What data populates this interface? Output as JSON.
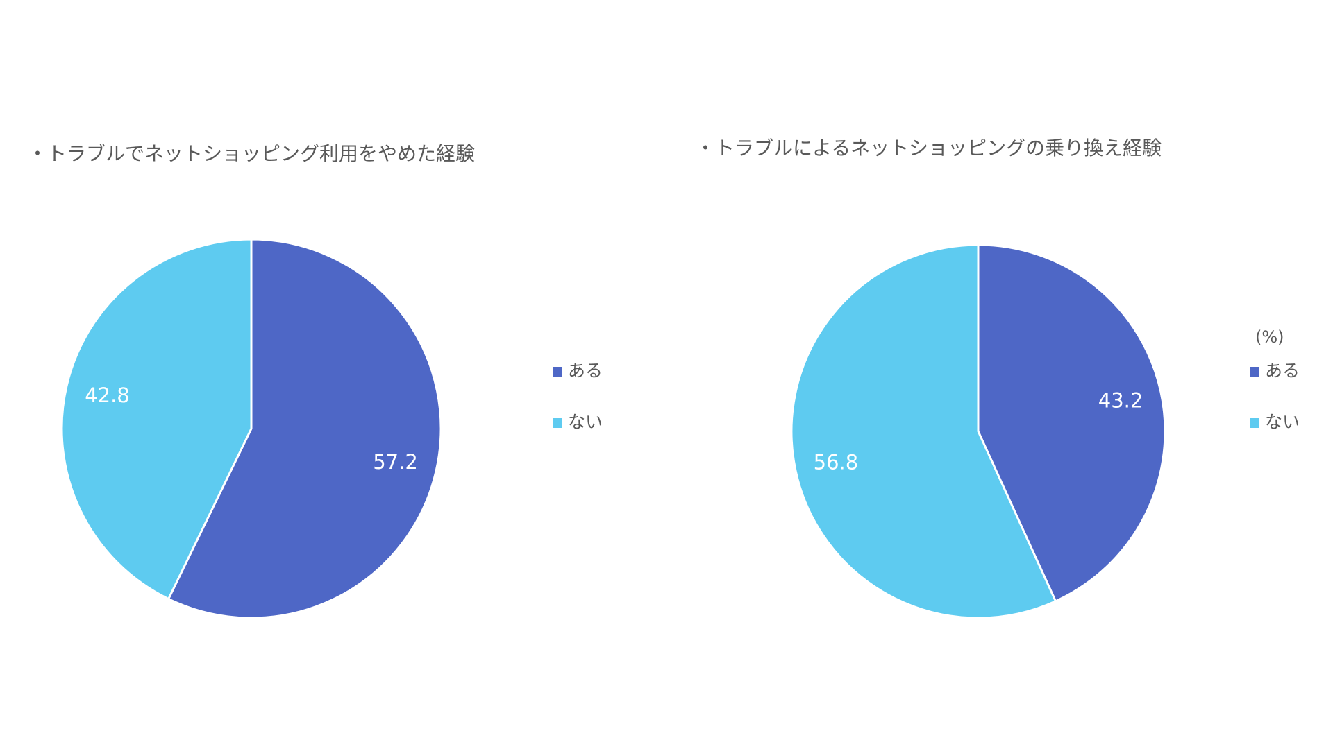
{
  "chart_data": [
    {
      "type": "pie",
      "title": "・トラブルでネットショッピング利用をやめた経験",
      "categories": [
        "ある",
        "ない"
      ],
      "values": [
        57.2,
        42.8
      ],
      "colors": [
        "#4E67C6",
        "#5ECBF0"
      ],
      "legend": "right"
    },
    {
      "type": "pie",
      "title": "・トラブルによるネットショッピングの乗り換え経験",
      "unit": "(%)",
      "categories": [
        "ある",
        "ない"
      ],
      "values": [
        43.2,
        56.8
      ],
      "colors": [
        "#4E67C6",
        "#5ECBF0"
      ],
      "legend": "right"
    }
  ]
}
